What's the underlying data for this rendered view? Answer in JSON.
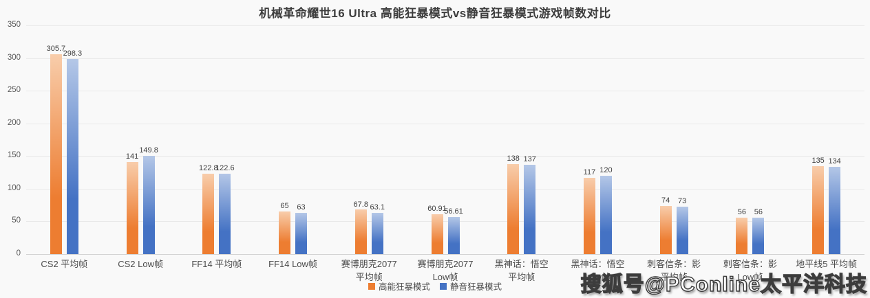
{
  "watermark": "搜狐号@PConline太平洋科技",
  "colors": {
    "background": "#f9f9f9",
    "gridline": "#e9e9e9",
    "axis_line": "#d2d2d2",
    "label_text": "#4a4a4a",
    "value_text": "#3f3f3f",
    "series1_main": "#ed7d31",
    "series1_light": "#f8cdab",
    "series2_main": "#4472c4",
    "series2_light": "#b4c7e7"
  },
  "chart_data": {
    "type": "bar",
    "title": "机械革命耀世16 Ultra 高能狂暴模式vs静音狂暴模式游戏帧数对比",
    "categories": [
      "CS2 平均帧",
      "CS2 Low帧",
      "FF14 平均帧",
      "FF14 Low帧",
      "赛博朋克2077\n平均帧",
      "赛博朋克2077\nLow帧",
      "黑神话：悟空\n平均帧",
      "黑神话：悟空\nLow帧",
      "刺客信条：影\n平均帧",
      "刺客信条：影\nLow帧",
      "地平线5 平均帧"
    ],
    "series": [
      {
        "name": "高能狂暴模式",
        "color": "#ed7d31",
        "gradient_top": "#f8cdab",
        "values": [
          305.7,
          141,
          122.8,
          65,
          67.8,
          60.91,
          138,
          117,
          74,
          56,
          135
        ]
      },
      {
        "name": "静音狂暴模式",
        "color": "#4472c4",
        "gradient_top": "#b4c7e7",
        "values": [
          298.3,
          149.8,
          122.6,
          63,
          63.1,
          56.61,
          137,
          120,
          73,
          56,
          134
        ]
      }
    ],
    "xlabel": "",
    "ylabel": "",
    "ylim": [
      0,
      350
    ],
    "yticks": [
      0,
      50,
      100,
      150,
      200,
      250,
      300,
      350
    ],
    "grid": true,
    "value_labels": true,
    "legend_position": "bottom"
  }
}
